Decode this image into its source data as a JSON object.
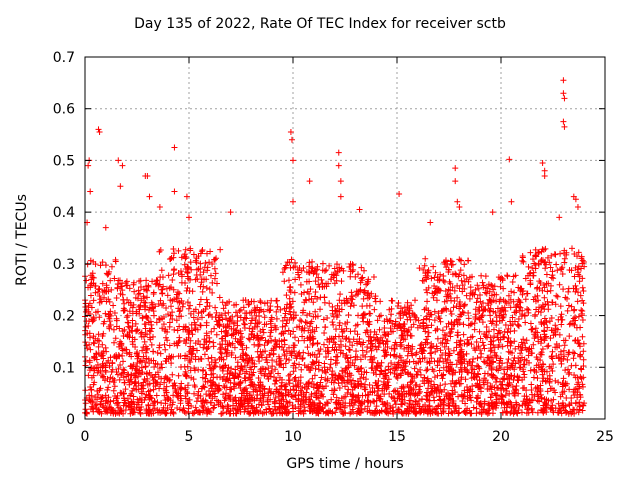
{
  "chart_data": {
    "type": "scatter",
    "title": "Day 135 of 2022, Rate Of TEC Index for receiver sctb",
    "xlabel": "GPS time / hours",
    "ylabel": "ROTI / TECUs",
    "xlim": [
      0,
      25
    ],
    "ylim": [
      0,
      0.7
    ],
    "xticks": [
      0,
      5,
      10,
      15,
      20,
      25
    ],
    "yticks": [
      0,
      0.1,
      0.2,
      0.3,
      0.4,
      0.5,
      0.6,
      0.7
    ],
    "grid": true,
    "marker": "+",
    "marker_color": "#ff0000",
    "x_data_range": [
      0,
      24
    ],
    "points": [
      {
        "x": 0.1,
        "y": 0.38
      },
      {
        "x": 0.15,
        "y": 0.49
      },
      {
        "x": 0.2,
        "y": 0.5
      },
      {
        "x": 0.25,
        "y": 0.44
      },
      {
        "x": 0.3,
        "y": 0.27
      },
      {
        "x": 0.65,
        "y": 0.56
      },
      {
        "x": 0.7,
        "y": 0.555
      },
      {
        "x": 1.0,
        "y": 0.37
      },
      {
        "x": 1.6,
        "y": 0.5
      },
      {
        "x": 1.7,
        "y": 0.45
      },
      {
        "x": 1.8,
        "y": 0.49
      },
      {
        "x": 2.9,
        "y": 0.47
      },
      {
        "x": 3.0,
        "y": 0.47
      },
      {
        "x": 3.1,
        "y": 0.43
      },
      {
        "x": 3.6,
        "y": 0.41
      },
      {
        "x": 4.3,
        "y": 0.525
      },
      {
        "x": 4.3,
        "y": 0.44
      },
      {
        "x": 4.9,
        "y": 0.43
      },
      {
        "x": 5.0,
        "y": 0.39
      },
      {
        "x": 7.0,
        "y": 0.4
      },
      {
        "x": 9.9,
        "y": 0.555
      },
      {
        "x": 9.95,
        "y": 0.54
      },
      {
        "x": 10.0,
        "y": 0.5
      },
      {
        "x": 10.0,
        "y": 0.42
      },
      {
        "x": 10.8,
        "y": 0.46
      },
      {
        "x": 12.2,
        "y": 0.515
      },
      {
        "x": 12.2,
        "y": 0.49
      },
      {
        "x": 12.3,
        "y": 0.46
      },
      {
        "x": 12.3,
        "y": 0.43
      },
      {
        "x": 13.2,
        "y": 0.405
      },
      {
        "x": 15.1,
        "y": 0.435
      },
      {
        "x": 16.6,
        "y": 0.38
      },
      {
        "x": 17.8,
        "y": 0.485
      },
      {
        "x": 17.8,
        "y": 0.46
      },
      {
        "x": 17.9,
        "y": 0.42
      },
      {
        "x": 18.0,
        "y": 0.41
      },
      {
        "x": 19.6,
        "y": 0.4
      },
      {
        "x": 20.4,
        "y": 0.502
      },
      {
        "x": 20.5,
        "y": 0.42
      },
      {
        "x": 22.0,
        "y": 0.495
      },
      {
        "x": 22.1,
        "y": 0.48
      },
      {
        "x": 22.1,
        "y": 0.47
      },
      {
        "x": 22.8,
        "y": 0.39
      },
      {
        "x": 23.0,
        "y": 0.655
      },
      {
        "x": 23.0,
        "y": 0.63
      },
      {
        "x": 23.05,
        "y": 0.62
      },
      {
        "x": 23.0,
        "y": 0.575
      },
      {
        "x": 23.05,
        "y": 0.565
      },
      {
        "x": 23.5,
        "y": 0.43
      },
      {
        "x": 23.6,
        "y": 0.425
      },
      {
        "x": 23.7,
        "y": 0.41
      }
    ]
  }
}
